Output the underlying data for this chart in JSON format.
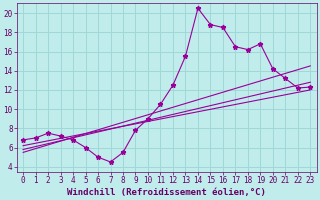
{
  "xlabel": "Windchill (Refroidissement éolien,°C)",
  "bg_color": "#c0ecec",
  "line_color": "#990099",
  "xlim": [
    -0.5,
    23.5
  ],
  "ylim": [
    3.5,
    21.0
  ],
  "xticks": [
    0,
    1,
    2,
    3,
    4,
    5,
    6,
    7,
    8,
    9,
    10,
    11,
    12,
    13,
    14,
    15,
    16,
    17,
    18,
    19,
    20,
    21,
    22,
    23
  ],
  "yticks": [
    4,
    6,
    8,
    10,
    12,
    14,
    16,
    18,
    20
  ],
  "main_x": [
    0,
    1,
    2,
    3,
    4,
    5,
    6,
    7,
    8,
    9,
    10,
    11,
    12,
    13,
    14,
    15,
    16,
    17,
    18,
    19,
    20,
    21,
    22,
    23
  ],
  "main_y": [
    6.8,
    7.0,
    7.5,
    7.2,
    6.8,
    6.0,
    5.0,
    4.5,
    5.5,
    7.8,
    9.0,
    10.5,
    12.5,
    15.5,
    20.5,
    18.8,
    18.5,
    16.5,
    16.2,
    16.8,
    14.2,
    13.2,
    12.2,
    12.3
  ],
  "line1_x": [
    0,
    23
  ],
  "line1_y": [
    5.5,
    14.5
  ],
  "line2_x": [
    0,
    23
  ],
  "line2_y": [
    5.8,
    12.8
  ],
  "line3_x": [
    0,
    23
  ],
  "line3_y": [
    6.2,
    12.0
  ],
  "grid_color": "#a0d8d8",
  "font_color": "#660066",
  "font_family": "monospace",
  "font_size_label": 6.5,
  "font_size_tick": 5.5,
  "marker_size": 3.5
}
